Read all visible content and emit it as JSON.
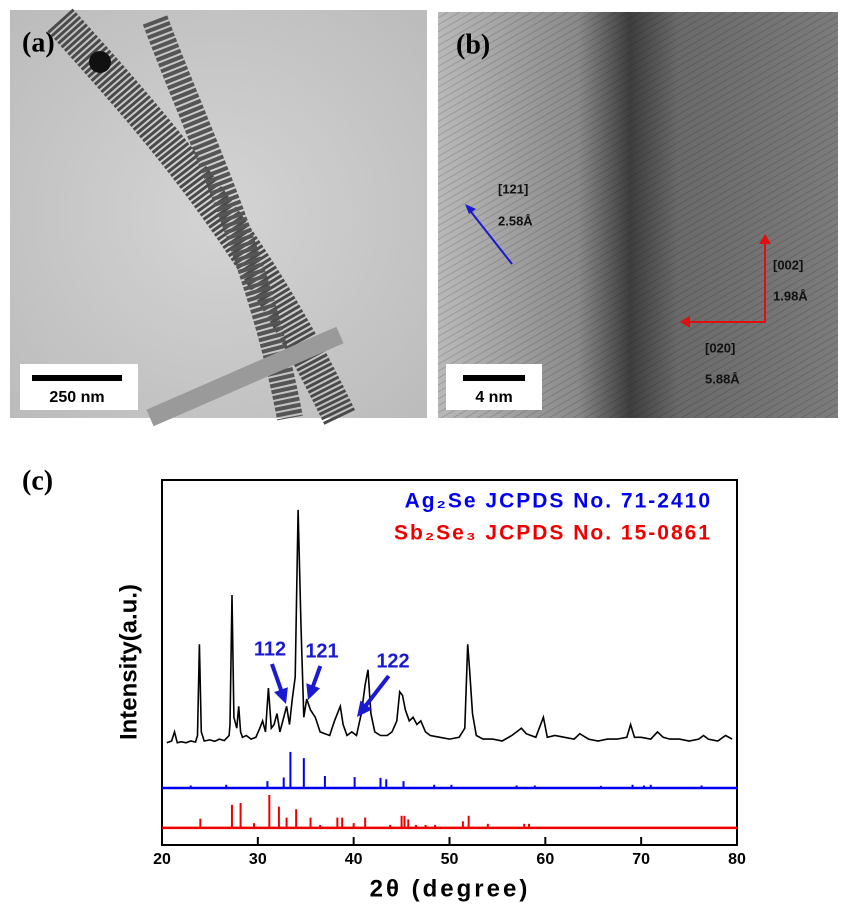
{
  "panels": {
    "a": {
      "label": "(a)",
      "scale_bar": "250 nm"
    },
    "b": {
      "label": "(b)",
      "scale_bar": "4 nm",
      "directions": [
        {
          "index": "[121]",
          "spacing": "2.58Å"
        },
        {
          "index": "[002]",
          "spacing": "1.98Å"
        },
        {
          "index": "[020]",
          "spacing": "5.88Å"
        }
      ]
    },
    "c": {
      "label": "(c)"
    }
  },
  "chart_data": {
    "type": "xrd",
    "xlabel": "2θ (degree)",
    "ylabel": "Intensity(a.u.)",
    "xlim": [
      20,
      80
    ],
    "xticks": [
      20,
      30,
      40,
      50,
      60,
      70,
      80
    ],
    "ylim": [
      0,
      100
    ],
    "annotations": [
      "112",
      "121",
      "122"
    ],
    "series": [
      {
        "color": "#000000",
        "style": "line",
        "x": [
          20.5,
          21,
          21.3,
          21.6,
          22,
          22.5,
          23,
          23.5,
          23.7,
          23.9,
          24.1,
          24.4,
          25,
          25.5,
          26,
          26.5,
          27,
          27.1,
          27.3,
          27.5,
          27.8,
          28,
          28.2,
          28.4,
          28.8,
          29.3,
          29.8,
          30.2,
          30.5,
          30.8,
          31.1,
          31.4,
          31.7,
          32,
          32.3,
          32.6,
          33,
          33.3,
          33.6,
          33.9,
          34.2,
          34.5,
          34.8,
          35.1,
          35.5,
          36,
          36.5,
          37,
          37.5,
          38,
          38.3,
          38.6,
          38.9,
          39.3,
          39.8,
          40.3,
          40.8,
          41.2,
          41.5,
          41.8,
          42.2,
          42.8,
          43.5,
          44,
          44.5,
          44.8,
          45.1,
          45.4,
          45.8,
          46.2,
          46.6,
          47,
          47.5,
          48,
          49,
          50,
          51,
          51.6,
          51.9,
          52.1,
          52.4,
          52.8,
          53.5,
          54.5,
          55.5,
          56.5,
          57,
          57.5,
          58,
          59,
          59.8,
          60.2,
          61,
          62,
          63,
          63.6,
          64.5,
          65.5,
          66.5,
          67.5,
          68.5,
          68.9,
          69.3,
          70,
          71,
          71.7,
          72.3,
          73,
          74,
          75,
          76,
          76.5,
          77,
          78,
          78.8,
          79.5
        ],
        "values": [
          28,
          28.5,
          31,
          28,
          28.3,
          28,
          28.5,
          28.2,
          30,
          55,
          31,
          28.5,
          28.8,
          28.4,
          29,
          28.6,
          30,
          33,
          68.5,
          35,
          32,
          38,
          31,
          29.5,
          30,
          29,
          29.5,
          32,
          34,
          31,
          43,
          32,
          33,
          36,
          31,
          34,
          38,
          33,
          40,
          46,
          91.8,
          60,
          35,
          40,
          37,
          35,
          31,
          30.5,
          30,
          34,
          36,
          38,
          33,
          30,
          31,
          30,
          36,
          44,
          48,
          36,
          31,
          30,
          30,
          31,
          34,
          42,
          41,
          37,
          34,
          35,
          33,
          34,
          31,
          30,
          29.5,
          29,
          29.5,
          32,
          55,
          48,
          36,
          30,
          29,
          29,
          28.5,
          30,
          31,
          32,
          30.5,
          29.5,
          35,
          29.5,
          30,
          29.5,
          29,
          30.5,
          29,
          28.5,
          29,
          29,
          29.5,
          33,
          29.5,
          29.5,
          29,
          31,
          29.5,
          29,
          29,
          28.5,
          29,
          30,
          29,
          28.5,
          30,
          29
        ]
      },
      {
        "name": "Ag₂Se JCPDS No. 71-2410",
        "color": "#0000ee",
        "style": "stick",
        "baseline": 15.6,
        "x": [
          23.0,
          26.7,
          31.0,
          32.7,
          33.4,
          34.8,
          37.0,
          40.1,
          42.8,
          43.4,
          45.2,
          48.4,
          50.2,
          57.0,
          58.9,
          65.8,
          69.1,
          70.3,
          71.0,
          76.3
        ],
        "values": [
          16.3,
          16.5,
          17.5,
          18.5,
          25.5,
          23.8,
          18.9,
          18.6,
          18.4,
          18,
          17.5,
          16.5,
          16.5,
          16.3,
          16.3,
          16.2,
          16.5,
          16.3,
          16.5,
          16.3
        ]
      },
      {
        "name": "Sb₂Se₃ JCPDS No. 15-0861",
        "color": "#ee0000",
        "style": "stick",
        "baseline": 4.7,
        "x": [
          24.0,
          27.3,
          28.2,
          29.6,
          31.2,
          32.2,
          33.0,
          34.0,
          35.5,
          36.5,
          38.3,
          38.8,
          40.0,
          41.2,
          43.8,
          45.0,
          45.3,
          45.7,
          46.5,
          47.5,
          48.5,
          51.4,
          52.0,
          54.0,
          57.8,
          58.3
        ],
        "values": [
          7.2,
          11,
          11.5,
          6,
          13.7,
          10.5,
          7.5,
          9.8,
          7.5,
          5.5,
          7.5,
          7.5,
          6,
          7.5,
          5.5,
          8,
          8,
          7,
          5.5,
          5.5,
          5.5,
          6.5,
          8,
          5.8,
          5.8,
          5.8
        ]
      }
    ]
  }
}
